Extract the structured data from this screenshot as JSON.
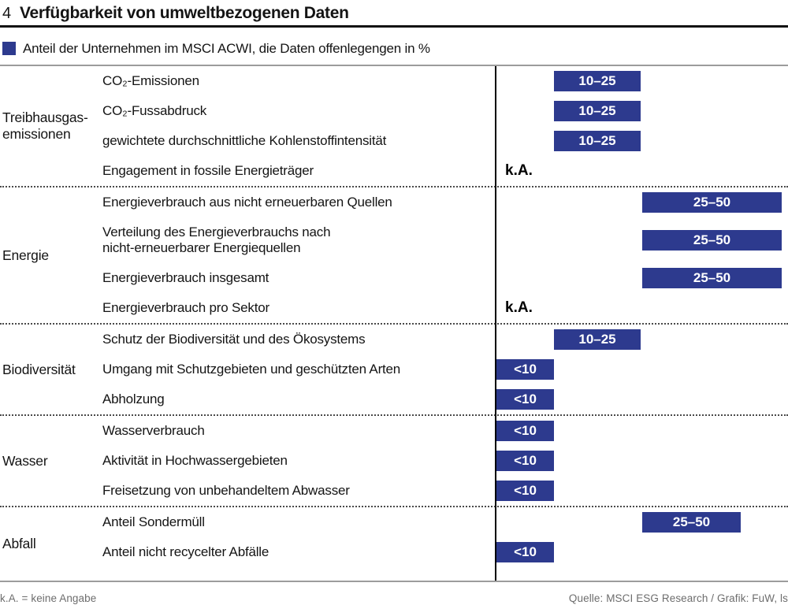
{
  "chart_number": "4",
  "footer": {
    "note": "k.A. = keine Angabe",
    "source": "Quelle: MSCI ESG Research / Grafik: FuW, ls"
  },
  "colors": {
    "bar_blue": "#2d3a8e",
    "axis_black": "#000000",
    "muted_gray": "#6d6d6d"
  },
  "chart_data": {
    "type": "bar",
    "title": "Verfügbarkeit von umweltbezogenen Daten",
    "subtitle": "Anteil der Unternehmen im MSCI ACWI, die Daten offenlegengen in %",
    "unit": "%",
    "value_scale": [
      "k.A.",
      "<10",
      "10–25",
      "25–50"
    ],
    "no_data_label": "k.A.",
    "legend_note": "Bar length encodes the disclosure-share category",
    "groups": [
      {
        "label": "Treibhausgas-\nemissionen",
        "rows": [
          {
            "label": "CO₂-Emissionen",
            "value": "10–25"
          },
          {
            "label": "CO₂-Fussabdruck",
            "value": "10–25"
          },
          {
            "label": "gewichtete durchschnittliche Kohlenstoffintensität",
            "value": "10–25"
          },
          {
            "label": "Engagement in fossile Energieträger",
            "value": "k.A."
          }
        ]
      },
      {
        "label": "Energie",
        "rows": [
          {
            "label": "Energieverbrauch aus nicht erneuerbaren Quellen",
            "value": "25–50"
          },
          {
            "label": "Verteilung des Energieverbrauchs nach\nnicht-erneuerbarer Energiequellen",
            "value": "25–50"
          },
          {
            "label": "Energieverbrauch insgesamt",
            "value": "25–50"
          },
          {
            "label": "Energieverbrauch pro Sektor",
            "value": "k.A."
          }
        ]
      },
      {
        "label": "Biodiversität",
        "rows": [
          {
            "label": "Schutz der Biodiversität und des Ökosystems",
            "value": "10–25"
          },
          {
            "label": "Umgang mit Schutzgebieten und geschützten Arten",
            "value": "<10"
          },
          {
            "label": "Abholzung",
            "value": "<10"
          }
        ]
      },
      {
        "label": "Wasser",
        "rows": [
          {
            "label": "Wasserverbrauch",
            "value": "<10"
          },
          {
            "label": "Aktivität in Hochwassergebieten",
            "value": "<10"
          },
          {
            "label": "Freisetzung von unbehandeltem Abwasser",
            "value": "<10"
          }
        ]
      },
      {
        "label": "Abfall",
        "rows": [
          {
            "label": "Anteil Sondermüll",
            "value": "25–50"
          },
          {
            "label": "Anteil nicht recycelter Abfälle",
            "value": "<10"
          }
        ]
      }
    ]
  }
}
